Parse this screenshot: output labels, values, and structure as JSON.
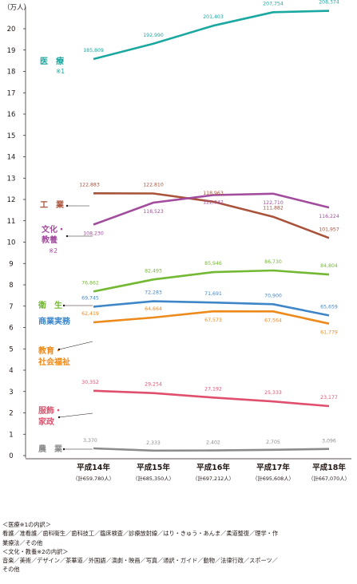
{
  "chart_data": {
    "type": "line",
    "unit_label": "（万人）",
    "ylim": [
      0,
      21
    ],
    "yticks": [
      0,
      1,
      2,
      3,
      4,
      5,
      6,
      7,
      8,
      9,
      10,
      11,
      12,
      13,
      14,
      15,
      16,
      17,
      18,
      19,
      20
    ],
    "categories": [
      "平成14年",
      "平成15年",
      "平成16年",
      "平成17年",
      "平成18年"
    ],
    "category_totals": [
      "（計659,780人）",
      "（計685,350人）",
      "（計697,212人）",
      "（計695,608人）",
      "（計667,070人）"
    ],
    "series": [
      {
        "id": "iryo",
        "name": "医　療",
        "note": "※1",
        "color": "#1aa8a0",
        "values": [
          185809,
          192990,
          201403,
          207754,
          208374
        ],
        "labels": [
          "185,809",
          "192,990",
          "201,403",
          "207,754",
          "208,374"
        ]
      },
      {
        "id": "kogyo",
        "name": "工　業",
        "color": "#a9533a",
        "values": [
          122883,
          122810,
          118963,
          111882,
          101957
        ],
        "labels": [
          "122,883",
          "122,810",
          "118,963",
          "111,882",
          "101,957"
        ]
      },
      {
        "id": "bunka",
        "name": "文化・教養",
        "name_lines": [
          "文化・",
          "教養"
        ],
        "note": "※2",
        "color": "#a24c9d",
        "values": [
          108230,
          118523,
          122042,
          122710,
          116224
        ],
        "labels": [
          "108,230",
          "118,523",
          "122,042",
          "122,710",
          "116,224"
        ]
      },
      {
        "id": "eisei",
        "name": "衛　生",
        "color": "#73b832",
        "values": [
          76862,
          82493,
          85946,
          86730,
          84804
        ],
        "labels": [
          "76,862",
          "82,493",
          "85,946",
          "86,730",
          "84,804"
        ]
      },
      {
        "id": "shogyo",
        "name": "商業実務",
        "color": "#3f86c8",
        "values": [
          69745,
          72283,
          71691,
          70900,
          65659
        ],
        "labels": [
          "69,745",
          "72,283",
          "71,691",
          "70,900",
          "65,659"
        ]
      },
      {
        "id": "kyoiku",
        "name": "教育・社会福祉",
        "name_lines": [
          "教育・",
          "社会福祉"
        ],
        "color": "#ec8a1c",
        "values": [
          62419,
          64664,
          67573,
          67564,
          61779
        ],
        "labels": [
          "62,419",
          "64,664",
          "67,573",
          "67,564",
          "61,779"
        ]
      },
      {
        "id": "fukushoku",
        "name": "服飾・家政",
        "name_lines": [
          "服飾・",
          "家政"
        ],
        "color": "#e0506e",
        "values": [
          30352,
          29254,
          27192,
          25333,
          23177
        ],
        "labels": [
          "30,352",
          "29,254",
          "27,192",
          "25,333",
          "23,177"
        ]
      },
      {
        "id": "nogyo",
        "name": "農　業",
        "color": "#8c8c8c",
        "values": [
          3370,
          2333,
          2402,
          2705,
          3096
        ],
        "labels": [
          "3,370",
          "2,333",
          "2,402",
          "2,705",
          "3,096"
        ]
      }
    ],
    "grid": false,
    "legend": "inline-left"
  },
  "notes": {
    "iryo_header": "＜医療※1の内訳＞",
    "iryo_line1": "看護／准看護／歯科衛生／歯科技工／臨床検査／診療放射線／はり・きゅう・あんま／柔道整復／理学・作",
    "iryo_line2": "業療法／その他",
    "bunka_header": "＜文化・教養※2の内訳＞",
    "bunka_line1": "音楽／美術／デザイン／茶華道／外国語／演劇・映画／写真／通訳・ガイド／動物／法律行政／スポーツ／",
    "bunka_line2": "その他"
  }
}
